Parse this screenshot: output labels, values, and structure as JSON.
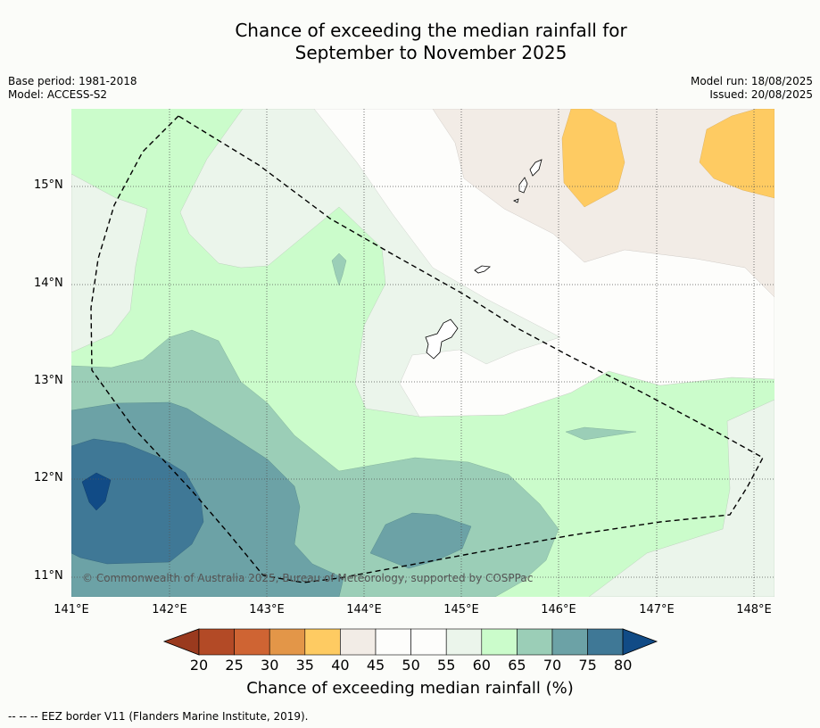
{
  "title_line1": "Chance of exceeding the median rainfall for",
  "title_line2": "September to November 2025",
  "meta_left": {
    "base_period": "Base period: 1981-2018",
    "model": "Model: ACCESS-S2"
  },
  "meta_right": {
    "model_run": "Model run: 18/08/2025",
    "issued": "Issued: 20/08/2025"
  },
  "map": {
    "lat_labels": [
      "15°N",
      "14°N",
      "13°N",
      "12°N",
      "11°N"
    ],
    "lon_labels": [
      "141°E",
      "142°E",
      "143°E",
      "144°E",
      "145°E",
      "146°E",
      "147°E",
      "148°E"
    ],
    "copyright": "© Commonwealth of Australia 2025, Bureau of Meteorology, supported by COSPPac"
  },
  "colorbar": {
    "ticks": [
      "20",
      "25",
      "30",
      "35",
      "40",
      "45",
      "50",
      "55",
      "60",
      "65",
      "70",
      "75",
      "80"
    ],
    "colors": {
      "below_20": "#9a3a1e",
      "20_25": "#b34a26",
      "25_30": "#cf6433",
      "30_35": "#e39648",
      "35_40": "#fecb62",
      "40_45": "#f2ece6",
      "45_50": "#fdfdfb",
      "50_55": "#fdfdfb",
      "55_60": "#ebf5eb",
      "60_65": "#cbfccb",
      "65_70": "#9bceb7",
      "70_75": "#6ca2a6",
      "75_80": "#3f7896",
      "above_80": "#114b86"
    },
    "title": "Chance of exceeding median rainfall (%)"
  },
  "footnote": "--  --  -- EEZ border V11 (Flanders Marine Institute, 2019)."
}
